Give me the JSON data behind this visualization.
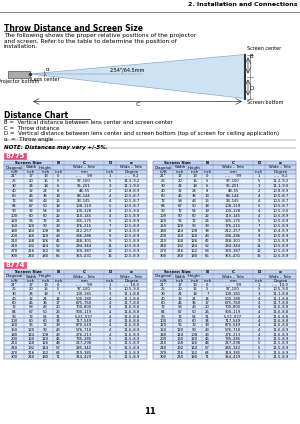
{
  "title_right": "2. Installation and Connections",
  "section_title": "Throw Distance and Screen Size",
  "section_desc": "The following shows the proper relative positions of the projector and screen. Refer to the table to determine the position of installation.",
  "distance_chart_title": "Distance Chart",
  "distance_chart_items": [
    "B =  Vertical distance between lens center and screen center",
    "C =  Throw distance",
    "D =  Vertical distance between lens center and screen bottom (top of screen for ceiling application)",
    "α  =  Throw angle"
  ],
  "note": "NOTE: Distances may vary +/-5%.",
  "model1": "8775",
  "model2": "8774",
  "model1_color": "#e8507a",
  "model2_color": "#e8507a",
  "table_header_bg": "#c8d8f0",
  "table_row_bg1": "#dce8f8",
  "table_row_bg2": "#eef4fc",
  "col_headers": [
    "Screen Size",
    "B",
    "C",
    "D",
    "α"
  ],
  "sub_headers": [
    "Diagonal",
    "Width",
    "Height",
    "",
    "Wide – Tele",
    "",
    "Wide – Tele"
  ],
  "sub_headers2": [
    "in/ft",
    "inch",
    "inch",
    "inch",
    "mm",
    "inch",
    "mm",
    "Degree"
  ],
  "page_number": "11",
  "table1_data": [
    [
      "21",
      "17",
      "13",
      "0",
      "––",
      "99",
      "1",
      "––",
      "9.2"
    ],
    [
      "25",
      "20",
      "15",
      "5",
      "97–100",
      "5",
      "11.2–9.2"
    ],
    [
      "30",
      "24",
      "18",
      "6",
      "95–201",
      "3",
      "11.1–9.0"
    ],
    [
      "40",
      "32",
      "24",
      "8",
      "48–55",
      "2",
      "10.8–8.9"
    ],
    [
      "60",
      "46",
      "36",
      "13",
      "88–144",
      "4",
      "10.5–8.7"
    ],
    [
      "72",
      "58",
      "43",
      "16",
      "93–145",
      "4",
      "10.5–8.7"
    ],
    [
      "84",
      "67",
      "50",
      "18",
      "108–119",
      "5",
      "10.5–8.7"
    ],
    [
      "90",
      "72",
      "54",
      "19",
      "100–128",
      "4",
      "10.5–9.0"
    ],
    [
      "100",
      "80",
      "60",
      "22",
      "110–145",
      "4",
      "10.5–8.9"
    ],
    [
      "120",
      "96",
      "72",
      "26",
      "135–175",
      "5",
      "10.5–8.9"
    ],
    [
      "150",
      "120",
      "90",
      "33",
      "176–215",
      "7",
      "10.5–8.9"
    ],
    [
      "180",
      "144",
      "108",
      "38",
      "212–257",
      "8",
      "10.4–8.9"
    ],
    [
      "200",
      "160",
      "120",
      "43",
      "236–286",
      "9",
      "10.5–8.9"
    ],
    [
      "210",
      "168",
      "126",
      "45",
      "248–301",
      "9",
      "10.5–8.9"
    ],
    [
      "240",
      "192",
      "144",
      "52",
      "284–344",
      "11",
      "10.5–8.9"
    ],
    [
      "270",
      "216",
      "162",
      "58",
      "320–387",
      "12",
      "10.5–8.9"
    ],
    [
      "300",
      "240",
      "180",
      "65",
      "355–431",
      "15",
      "10.5–8.9"
    ]
  ],
  "bg_color": "#ffffff"
}
